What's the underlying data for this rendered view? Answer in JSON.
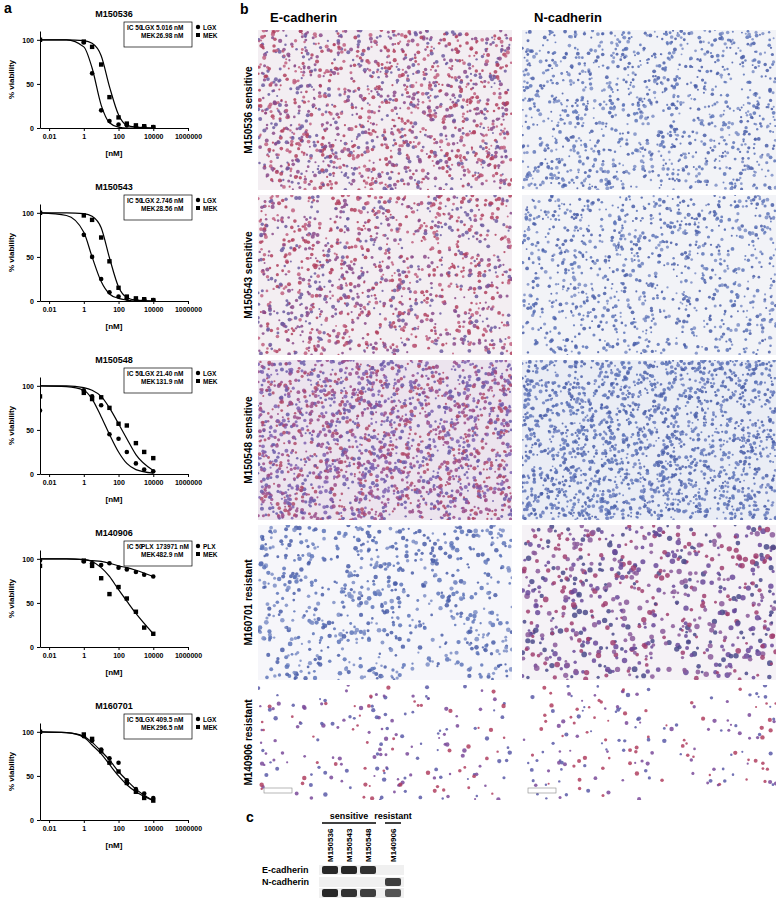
{
  "panels": [
    "a",
    "b",
    "c"
  ],
  "chart_data": [
    {
      "type": "scatter",
      "title": "M150536",
      "x_label": "[nM]",
      "y_label": "% viability",
      "log": "x",
      "xlim": [
        0.003,
        1000000
      ],
      "xticks": [
        0.01,
        1,
        100,
        10000,
        1000000
      ],
      "ylim": [
        0,
        110
      ],
      "yticks": [
        0,
        50,
        100
      ],
      "legend": "top-right",
      "legend_title": "IC 50",
      "series": [
        {
          "name": "LGX",
          "marker": "circle",
          "color": "#000000",
          "ic50": {
            "value": 5.016,
            "label": "5.016 nM"
          },
          "x": [
            0.003,
            1,
            3,
            10,
            30,
            100,
            300,
            1000,
            3000,
            10000
          ],
          "values": [
            100,
            97,
            62,
            20,
            8,
            4,
            3,
            2,
            2,
            1
          ],
          "fit": {
            "x": [
              0.003,
              0.1,
              1,
              3,
              10,
              30,
              100,
              300,
              1000,
              10000
            ],
            "values": [
              100,
              100,
              92,
              68,
              26,
              6,
              1,
              0,
              0,
              0
            ]
          }
        },
        {
          "name": "MEK",
          "marker": "square",
          "color": "#000000",
          "ic50": {
            "value": 26.98,
            "label": "26.98 nM"
          },
          "x": [
            0.003,
            1,
            3,
            10,
            30,
            100,
            300,
            1000,
            3000,
            10000
          ],
          "values": [
            100,
            98,
            92,
            72,
            35,
            12,
            5,
            3,
            2,
            1
          ],
          "fit": {
            "x": [
              0.003,
              0.1,
              1,
              3,
              10,
              30,
              100,
              300,
              1000,
              10000
            ],
            "values": [
              100,
              100,
              99,
              96,
              82,
              47,
              15,
              3,
              1,
              0
            ]
          }
        }
      ]
    },
    {
      "type": "scatter",
      "title": "M150543",
      "x_label": "[nM]",
      "y_label": "% viability",
      "log": "x",
      "xlim": [
        0.003,
        1000000
      ],
      "xticks": [
        0.01,
        1,
        100,
        10000,
        1000000
      ],
      "ylim": [
        0,
        110
      ],
      "yticks": [
        0,
        50,
        100
      ],
      "legend": "top-right",
      "legend_title": "IC 50",
      "series": [
        {
          "name": "LGX",
          "marker": "circle",
          "color": "#000000",
          "ic50": {
            "value": 2.746,
            "label": "2.746 nM"
          },
          "x": [
            0.003,
            1,
            3,
            10,
            30,
            100,
            300,
            1000,
            3000,
            10000
          ],
          "values": [
            100,
            75,
            50,
            25,
            10,
            5,
            3,
            2,
            2,
            1
          ],
          "fit": {
            "x": [
              0.003,
              0.1,
              1,
              3,
              10,
              30,
              100,
              300,
              1000,
              10000
            ],
            "values": [
              100,
              97,
              78,
              50,
              22,
              8,
              3,
              1,
              0,
              0
            ]
          }
        },
        {
          "name": "MEK",
          "marker": "square",
          "color": "#000000",
          "ic50": {
            "value": 28.56,
            "label": "28.56 nM"
          },
          "x": [
            0.003,
            1,
            3,
            10,
            30,
            100,
            300,
            1000,
            3000,
            10000
          ],
          "values": [
            100,
            97,
            92,
            72,
            45,
            15,
            5,
            3,
            2,
            1
          ],
          "fit": {
            "x": [
              0.003,
              0.1,
              1,
              3,
              10,
              30,
              100,
              300,
              1000,
              10000
            ],
            "values": [
              100,
              100,
              99,
              96,
              83,
              49,
              16,
              4,
              1,
              0
            ]
          }
        }
      ]
    },
    {
      "type": "scatter",
      "title": "M150548",
      "x_label": "[nM]",
      "y_label": "% viability",
      "log": "x",
      "xlim": [
        0.003,
        1000000
      ],
      "xticks": [
        0.01,
        1,
        100,
        10000,
        1000000
      ],
      "ylim": [
        0,
        110
      ],
      "yticks": [
        0,
        50,
        100
      ],
      "legend": "top-right",
      "legend_title": "IC 50",
      "series": [
        {
          "name": "LGX",
          "marker": "circle",
          "color": "#000000",
          "ic50": {
            "value": 21.4,
            "label": "21.40 nM"
          },
          "x": [
            0.003,
            1,
            3,
            10,
            30,
            100,
            300,
            1000,
            3000,
            10000
          ],
          "values": [
            72,
            95,
            88,
            78,
            45,
            40,
            25,
            12,
            5,
            3
          ],
          "fit": {
            "x": [
              0.003,
              0.1,
              1,
              3,
              10,
              30,
              100,
              300,
              1000,
              10000
            ],
            "values": [
              100,
              99,
              95,
              85,
              65,
              45,
              25,
              12,
              5,
              1
            ]
          }
        },
        {
          "name": "MEK",
          "marker": "square",
          "color": "#000000",
          "ic50": {
            "value": 131.9,
            "label": "131.9 nM"
          },
          "x": [
            0.003,
            1,
            3,
            10,
            30,
            100,
            300,
            1000,
            3000,
            10000
          ],
          "values": [
            88,
            92,
            85,
            87,
            75,
            57,
            55,
            35,
            25,
            18
          ],
          "fit": {
            "x": [
              0.003,
              0.1,
              1,
              3,
              10,
              30,
              100,
              300,
              1000,
              10000
            ],
            "values": [
              100,
              100,
              98,
              95,
              88,
              75,
              57,
              40,
              22,
              4
            ]
          }
        }
      ]
    },
    {
      "type": "scatter",
      "title": "M140906",
      "x_label": "[nM]",
      "y_label": "% viability",
      "log": "x",
      "xlim": [
        0.003,
        1000000
      ],
      "xticks": [
        0.01,
        1,
        100,
        10000,
        1000000
      ],
      "ylim": [
        0,
        110
      ],
      "yticks": [
        0,
        50,
        100
      ],
      "legend": "top-right",
      "legend_title": "IC 50",
      "series": [
        {
          "name": "PLX",
          "marker": "circle",
          "color": "#000000",
          "ic50": {
            "value": 173971,
            "label": "173971 nM"
          },
          "x": [
            0.003,
            1,
            3,
            10,
            30,
            100,
            300,
            1000,
            3000,
            10000
          ],
          "values": [
            98,
            97,
            95,
            93,
            95,
            90,
            88,
            85,
            82,
            80
          ],
          "fit": {
            "x": [
              0.003,
              0.1,
              1,
              3,
              10,
              30,
              100,
              300,
              1000,
              10000
            ],
            "values": [
              100,
              100,
              99,
              98,
              97,
              95,
              92,
              90,
              87,
              80
            ]
          }
        },
        {
          "name": "MEK",
          "marker": "square",
          "color": "#000000",
          "ic50": {
            "value": 482.9,
            "label": "482.9 nM"
          },
          "x": [
            0.003,
            1,
            3,
            10,
            30,
            100,
            300,
            1000,
            3000,
            10000
          ],
          "values": [
            92,
            98,
            92,
            78,
            60,
            68,
            55,
            40,
            22,
            15
          ],
          "fit": {
            "x": [
              0.003,
              0.1,
              1,
              3,
              10,
              30,
              100,
              300,
              1000,
              10000
            ],
            "values": [
              100,
              100,
              99,
              97,
              90,
              80,
              65,
              52,
              38,
              15
            ]
          }
        }
      ]
    },
    {
      "type": "scatter",
      "title": "M160701",
      "x_label": "[nM]",
      "y_label": "% viability",
      "log": "x",
      "xlim": [
        0.003,
        1000000
      ],
      "xticks": [
        0.01,
        1,
        100,
        10000,
        1000000
      ],
      "ylim": [
        0,
        110
      ],
      "yticks": [
        0,
        50,
        100
      ],
      "legend": "top-right",
      "legend_title": "IC 50",
      "series": [
        {
          "name": "LGX",
          "marker": "circle",
          "color": "#000000",
          "ic50": {
            "value": 409.5,
            "label": "409.5 nM"
          },
          "x": [
            0.003,
            1,
            3,
            10,
            30,
            100,
            300,
            1000,
            3000,
            10000
          ],
          "values": [
            100,
            95,
            90,
            80,
            70,
            65,
            45,
            35,
            30,
            25
          ],
          "fit": {
            "x": [
              0.003,
              0.1,
              1,
              3,
              10,
              30,
              100,
              300,
              1000,
              10000
            ],
            "values": [
              100,
              99,
              95,
              88,
              78,
              68,
              55,
              45,
              35,
              22
            ]
          }
        },
        {
          "name": "MEK",
          "marker": "square",
          "color": "#000000",
          "ic50": {
            "value": 296.5,
            "label": "296.5 nM"
          },
          "x": [
            0.003,
            1,
            3,
            10,
            30,
            100,
            300,
            1000,
            3000,
            10000
          ],
          "values": [
            100,
            97,
            92,
            78,
            65,
            55,
            42,
            32,
            25,
            22
          ],
          "fit": {
            "x": [
              0.003,
              0.1,
              1,
              3,
              10,
              30,
              100,
              300,
              1000,
              10000
            ],
            "values": [
              100,
              99,
              94,
              85,
              75,
              63,
              50,
              40,
              32,
              22
            ]
          }
        }
      ]
    }
  ],
  "images": {
    "columns": [
      "E-cadherin",
      "N-cadherin"
    ],
    "rows": [
      {
        "label": "M150536 sensitive"
      },
      {
        "label": "M150543 sensitive"
      },
      {
        "label": "M150548 sensitive"
      },
      {
        "label": "M160701 resistant"
      },
      {
        "label": "M140906 resistant"
      }
    ]
  },
  "blot": {
    "lanes": [
      "M150536",
      "M150543",
      "M150548",
      "M140906"
    ],
    "groups": [
      {
        "label": "sensitive",
        "lanes": [
          "M150536",
          "M150543",
          "M150548"
        ]
      },
      {
        "label": "resistant",
        "lanes": [
          "M140906"
        ]
      }
    ],
    "rows": [
      {
        "label": "E-cadherin",
        "intensity": [
          0.9,
          0.9,
          0.85,
          0
        ]
      },
      {
        "label": "N-cadherin",
        "intensity": [
          0,
          0,
          0,
          0.8
        ]
      },
      {
        "label": null,
        "intensity": [
          0.9,
          0.85,
          0.8,
          0.7
        ]
      }
    ]
  }
}
